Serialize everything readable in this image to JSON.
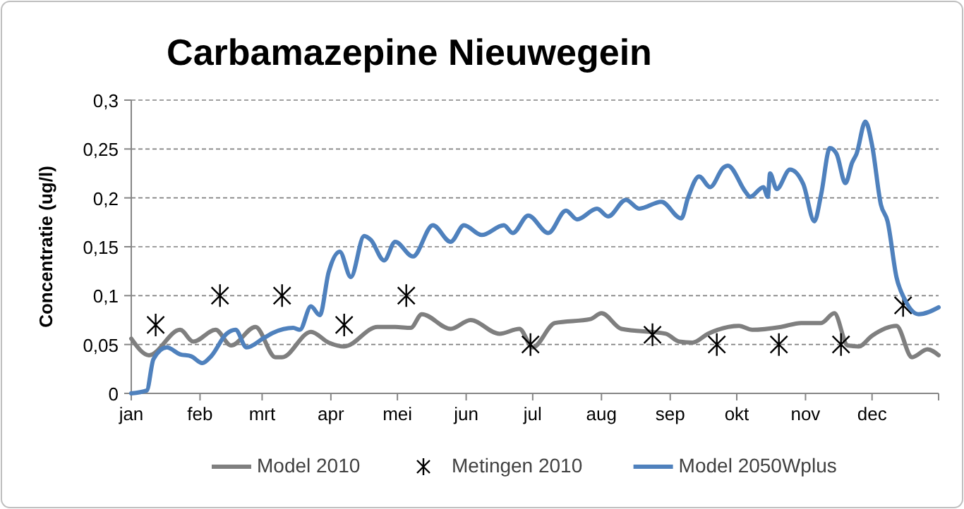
{
  "chart_data": {
    "type": "line",
    "title": "Carbamazepine Nieuwegein",
    "ylabel": "Concentratie (ug/l)",
    "xlim": [
      "--01-01",
      "--12-31"
    ],
    "xticks": [
      {
        "value": "--01-01",
        "label": "jan"
      },
      {
        "value": "--02-01",
        "label": "feb"
      },
      {
        "value": "--03-01",
        "label": "mrt"
      },
      {
        "value": "--04-01",
        "label": "apr"
      },
      {
        "value": "--05-01",
        "label": "mei"
      },
      {
        "value": "--06-01",
        "label": "jun"
      },
      {
        "value": "--07-01",
        "label": "jul"
      },
      {
        "value": "--08-01",
        "label": "aug"
      },
      {
        "value": "--09-01",
        "label": "sep"
      },
      {
        "value": "--10-01",
        "label": "okt"
      },
      {
        "value": "--11-01",
        "label": "nov"
      },
      {
        "value": "--12-01",
        "label": "dec"
      },
      {
        "value": "--12-31",
        "label": null
      }
    ],
    "ylim": [
      0,
      0.3
    ],
    "yticks": [
      0,
      {
        "value": 0.05,
        "label": "0,05"
      },
      {
        "value": 0.1,
        "label": "0,1"
      },
      {
        "value": 0.15,
        "label": "0,15"
      },
      {
        "value": 0.2,
        "label": "0,2"
      },
      {
        "value": 0.25,
        "label": "0,25"
      },
      {
        "value": 0.3,
        "label": "0,3"
      }
    ],
    "grid": "y",
    "legend": "bottom",
    "series": [
      {
        "name": "Model 2010",
        "color": "#7f7f7f",
        "x": [
          "--01-01",
          "--01-09",
          "--01-23",
          "--01-29",
          "--02-08",
          "--02-15",
          "--02-26",
          "--03-07",
          "--03-10",
          "--03-23",
          "--03-31",
          "--04-07",
          "--04-22",
          "--04-30",
          "--05-07",
          "--05-12",
          "--05-25",
          "--06-03",
          "--06-16",
          "--06-25",
          "--07-01",
          "--07-11",
          "--07-27",
          "--08-01",
          "--08-10",
          "--08-30",
          "--09-05",
          "--09-11",
          "--09-18",
          "--10-02",
          "--10-08",
          "--10-21",
          "--10-30",
          "--11-08",
          "--11-14",
          "--11-20",
          "--11-25",
          "--12-01",
          "--12-12",
          "--12-19",
          "--12-26",
          "--12-31"
        ],
        "values": [
          0.056,
          0.039,
          0.065,
          0.053,
          0.065,
          0.049,
          0.068,
          0.037,
          0.037,
          0.063,
          0.052,
          0.048,
          0.068,
          0.068,
          0.067,
          0.081,
          0.066,
          0.075,
          0.061,
          0.066,
          0.047,
          0.072,
          0.076,
          0.082,
          0.066,
          0.061,
          0.053,
          0.052,
          0.061,
          0.069,
          0.065,
          0.068,
          0.072,
          0.072,
          0.082,
          0.049,
          0.048,
          0.059,
          0.069,
          0.037,
          0.045,
          0.039
        ]
      },
      {
        "name": "Metingen 2010",
        "type": "scatter",
        "marker": "cross",
        "color": "#000000",
        "x": [
          "--01-12",
          "--02-10",
          "--03-10",
          "--04-07",
          "--05-05",
          "--06-30",
          "--08-24",
          "--09-22",
          "--10-20",
          "--11-17",
          "--12-15"
        ],
        "values": [
          0.07,
          0.1,
          0.1,
          0.07,
          0.1,
          0.05,
          0.06,
          0.05,
          0.05,
          0.05,
          0.09
        ]
      },
      {
        "name": "Model 2050Wplus",
        "color": "#4f81bd",
        "x": [
          "--01-01",
          "--01-08",
          "--01-11",
          "--01-17",
          "--01-23",
          "--01-28",
          "--02-02",
          "--02-06",
          "--02-13",
          "--02-17",
          "--02-22",
          "--03-02",
          "--03-06",
          "--03-15",
          "--03-18",
          "--03-23",
          "--03-27",
          "--03-31",
          "--04-05",
          "--04-10",
          "--04-16",
          "--04-19",
          "--04-25",
          "--04-30",
          "--05-08",
          "--05-17",
          "--05-25",
          "--05-31",
          "--06-08",
          "--06-18",
          "--06-22",
          "--06-29",
          "--07-08",
          "--07-16",
          "--07-21",
          "--07-30",
          "--08-04",
          "--08-12",
          "--08-18",
          "--08-28",
          "--09-06",
          "--09-09",
          "--09-14",
          "--09-19",
          "--09-25",
          "--09-27",
          "--10-05",
          "--10-07",
          "--10-13",
          "--10-15",
          "--10-16",
          "--10-19",
          "--10-25",
          "--10-31",
          "--11-05",
          "--11-08",
          "--11-12",
          "--11-15",
          "--11-19",
          "--11-22",
          "--11-24",
          "--11-28",
          "--12-01",
          "--12-05",
          "--12-08",
          "--12-12",
          "--12-16",
          "--12-22",
          "--12-31"
        ],
        "values": [
          0,
          0.003,
          0.035,
          0.047,
          0.04,
          0.038,
          0.031,
          0.038,
          0.061,
          0.065,
          0.047,
          0.057,
          0.062,
          0.067,
          0.065,
          0.089,
          0.08,
          0.124,
          0.145,
          0.119,
          0.161,
          0.157,
          0.136,
          0.155,
          0.14,
          0.172,
          0.155,
          0.172,
          0.162,
          0.172,
          0.164,
          0.182,
          0.164,
          0.187,
          0.178,
          0.189,
          0.181,
          0.198,
          0.189,
          0.196,
          0.179,
          0.2,
          0.222,
          0.211,
          0.231,
          0.233,
          0.206,
          0.201,
          0.211,
          0.201,
          0.225,
          0.209,
          0.229,
          0.214,
          0.176,
          0.203,
          0.251,
          0.245,
          0.215,
          0.236,
          0.245,
          0.278,
          0.254,
          0.193,
          0.176,
          0.119,
          0.095,
          0.081,
          0.088
        ]
      }
    ]
  }
}
